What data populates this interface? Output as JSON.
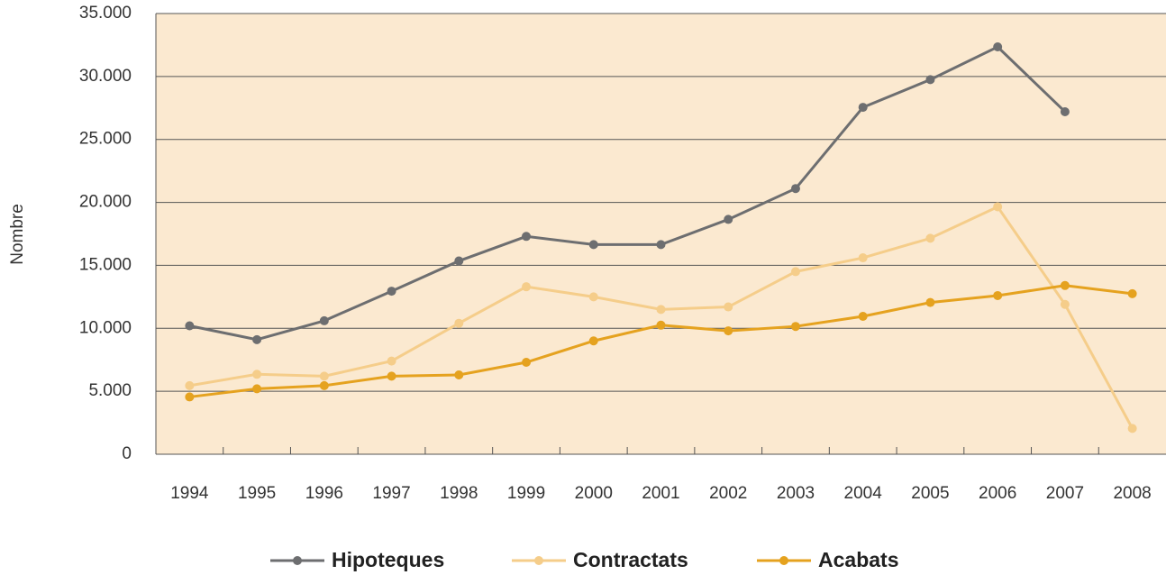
{
  "chart_data": {
    "type": "line",
    "y_label": "Nombre",
    "categories": [
      "1994",
      "1995",
      "1996",
      "1997",
      "1998",
      "1999",
      "2000",
      "2001",
      "2002",
      "2003",
      "2004",
      "2005",
      "2006",
      "2007",
      "2008"
    ],
    "series": [
      {
        "name": "Hipoteques",
        "color": "#6d6e70",
        "values": [
          10200,
          9100,
          10600,
          12950,
          15350,
          17300,
          16650,
          16650,
          18650,
          21100,
          27550,
          29750,
          32350,
          27200,
          null
        ]
      },
      {
        "name": "Contractats",
        "color": "#f5cd8a",
        "values": [
          5450,
          6350,
          6200,
          7400,
          10400,
          13300,
          12500,
          11500,
          11700,
          14500,
          15600,
          17150,
          19650,
          11900,
          2050
        ]
      },
      {
        "name": "Acabats",
        "color": "#e5a21f",
        "values": [
          4550,
          5200,
          5450,
          6200,
          6300,
          7300,
          9000,
          10250,
          9800,
          10150,
          10950,
          12050,
          12600,
          13400,
          12750
        ]
      }
    ],
    "ylim": [
      0,
      35000
    ],
    "yticks": [
      0,
      {
        "value": 5000,
        "label": "5.000"
      },
      {
        "value": 10000,
        "label": "10.000"
      },
      {
        "value": 15000,
        "label": "15.000"
      },
      {
        "value": 20000,
        "label": "20.000"
      },
      {
        "value": 25000,
        "label": "25.000"
      },
      {
        "value": 30000,
        "label": "30.000"
      },
      {
        "value": 35000,
        "label": "35.000"
      }
    ],
    "grid": true,
    "legend": "bottom",
    "plot_background": "#fbe9d0"
  }
}
